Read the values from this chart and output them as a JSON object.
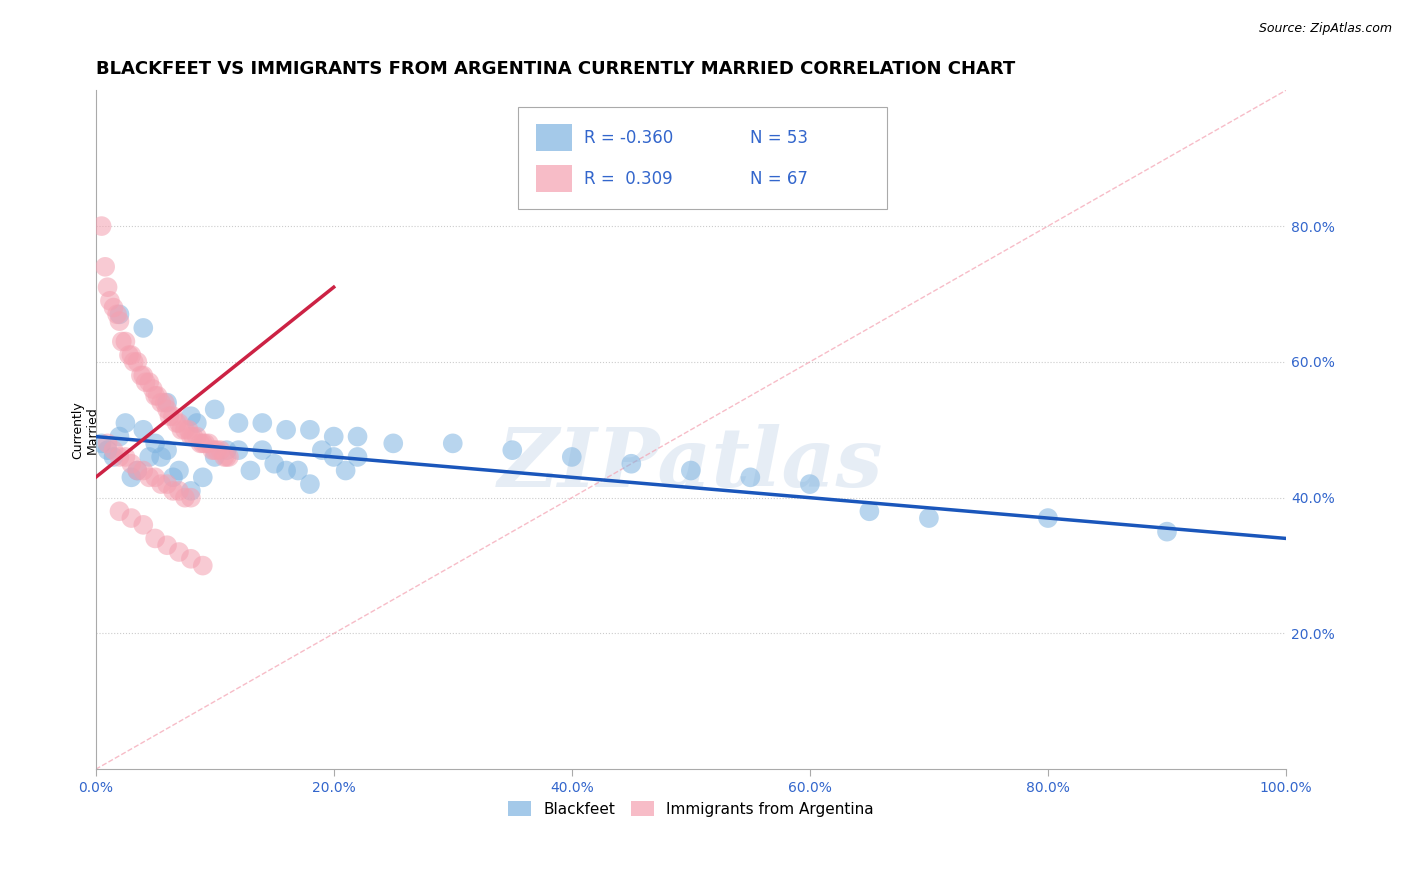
{
  "title": "BLACKFEET VS IMMIGRANTS FROM ARGENTINA CURRENTLY MARRIED CORRELATION CHART",
  "source": "Source: ZipAtlas.com",
  "ylabel": "Currently\nMarried",
  "watermark": "ZIPatlas",
  "legend_blue_R": "-0.360",
  "legend_blue_N": "53",
  "legend_pink_R": "0.309",
  "legend_pink_N": "67",
  "legend_label_blue": "Blackfeet",
  "legend_label_pink": "Immigrants from Argentina",
  "blue_color": "#7EB3E0",
  "pink_color": "#F4A0B0",
  "blue_line_color": "#1A56BB",
  "pink_line_color": "#CC2244",
  "diag_line_color": "#F4A0B0",
  "blue_scatter": [
    [
      0.5,
      48
    ],
    [
      1.0,
      47
    ],
    [
      1.5,
      46
    ],
    [
      2.0,
      49
    ],
    [
      2.5,
      51
    ],
    [
      3.0,
      43
    ],
    [
      3.5,
      44
    ],
    [
      4.0,
      50
    ],
    [
      4.5,
      46
    ],
    [
      5.0,
      48
    ],
    [
      5.5,
      46
    ],
    [
      6.0,
      47
    ],
    [
      6.5,
      43
    ],
    [
      7.0,
      44
    ],
    [
      8.0,
      41
    ],
    [
      8.5,
      51
    ],
    [
      9.0,
      43
    ],
    [
      10.0,
      46
    ],
    [
      11.0,
      47
    ],
    [
      12.0,
      47
    ],
    [
      13.0,
      44
    ],
    [
      14.0,
      47
    ],
    [
      15.0,
      45
    ],
    [
      16.0,
      44
    ],
    [
      17.0,
      44
    ],
    [
      18.0,
      42
    ],
    [
      19.0,
      47
    ],
    [
      20.0,
      46
    ],
    [
      21.0,
      44
    ],
    [
      22.0,
      46
    ],
    [
      2.0,
      67
    ],
    [
      4.0,
      65
    ],
    [
      6.0,
      54
    ],
    [
      8.0,
      52
    ],
    [
      10.0,
      53
    ],
    [
      12.0,
      51
    ],
    [
      14.0,
      51
    ],
    [
      16.0,
      50
    ],
    [
      18.0,
      50
    ],
    [
      20.0,
      49
    ],
    [
      22.0,
      49
    ],
    [
      25.0,
      48
    ],
    [
      30.0,
      48
    ],
    [
      35.0,
      47
    ],
    [
      40.0,
      46
    ],
    [
      45.0,
      45
    ],
    [
      50.0,
      44
    ],
    [
      55.0,
      43
    ],
    [
      60.0,
      42
    ],
    [
      65.0,
      38
    ],
    [
      70.0,
      37
    ],
    [
      80.0,
      37
    ],
    [
      90.0,
      35
    ]
  ],
  "pink_scatter": [
    [
      0.5,
      80
    ],
    [
      0.8,
      74
    ],
    [
      1.0,
      71
    ],
    [
      1.2,
      69
    ],
    [
      1.5,
      68
    ],
    [
      1.8,
      67
    ],
    [
      2.0,
      66
    ],
    [
      2.2,
      63
    ],
    [
      2.5,
      63
    ],
    [
      2.8,
      61
    ],
    [
      3.0,
      61
    ],
    [
      3.2,
      60
    ],
    [
      3.5,
      60
    ],
    [
      3.8,
      58
    ],
    [
      4.0,
      58
    ],
    [
      4.2,
      57
    ],
    [
      4.5,
      57
    ],
    [
      4.8,
      56
    ],
    [
      5.0,
      55
    ],
    [
      5.2,
      55
    ],
    [
      5.5,
      54
    ],
    [
      5.8,
      54
    ],
    [
      6.0,
      53
    ],
    [
      6.2,
      52
    ],
    [
      6.5,
      52
    ],
    [
      6.8,
      51
    ],
    [
      7.0,
      51
    ],
    [
      7.2,
      50
    ],
    [
      7.5,
      50
    ],
    [
      7.8,
      50
    ],
    [
      8.0,
      49
    ],
    [
      8.2,
      49
    ],
    [
      8.5,
      49
    ],
    [
      8.8,
      48
    ],
    [
      9.0,
      48
    ],
    [
      9.2,
      48
    ],
    [
      9.5,
      48
    ],
    [
      9.8,
      47
    ],
    [
      10.0,
      47
    ],
    [
      10.2,
      47
    ],
    [
      10.5,
      47
    ],
    [
      10.8,
      46
    ],
    [
      11.0,
      46
    ],
    [
      11.2,
      46
    ],
    [
      1.0,
      48
    ],
    [
      1.5,
      47
    ],
    [
      2.0,
      46
    ],
    [
      2.5,
      46
    ],
    [
      3.0,
      45
    ],
    [
      3.5,
      44
    ],
    [
      4.0,
      44
    ],
    [
      4.5,
      43
    ],
    [
      5.0,
      43
    ],
    [
      5.5,
      42
    ],
    [
      6.0,
      42
    ],
    [
      6.5,
      41
    ],
    [
      7.0,
      41
    ],
    [
      7.5,
      40
    ],
    [
      8.0,
      40
    ],
    [
      2.0,
      38
    ],
    [
      3.0,
      37
    ],
    [
      4.0,
      36
    ],
    [
      5.0,
      34
    ],
    [
      6.0,
      33
    ],
    [
      7.0,
      32
    ],
    [
      8.0,
      31
    ],
    [
      9.0,
      30
    ]
  ],
  "blue_line_x": [
    0.0,
    100.0
  ],
  "blue_line_y": [
    49.0,
    34.0
  ],
  "pink_line_x": [
    0.0,
    20.0
  ],
  "pink_line_y": [
    43.0,
    71.0
  ],
  "diag_line_x": [
    0.0,
    100.0
  ],
  "diag_line_y": [
    0.0,
    100.0
  ],
  "xlim": [
    0,
    100
  ],
  "ylim": [
    0,
    100
  ],
  "yticks": [
    20,
    40,
    60,
    80
  ],
  "xticks_pct": [
    0,
    20,
    40,
    60,
    80,
    100
  ],
  "background_color": "#FFFFFF",
  "grid_color": "#CCCCCC",
  "title_fontsize": 13,
  "axis_label_fontsize": 9,
  "tick_fontsize": 10,
  "legend_fontsize": 12
}
